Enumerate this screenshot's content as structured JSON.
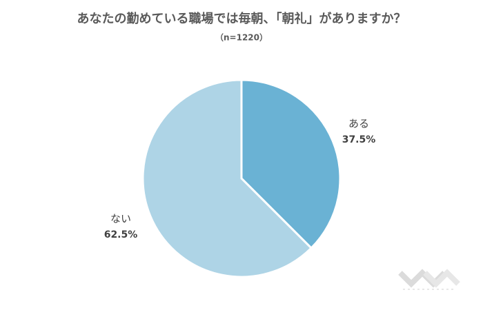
{
  "chart_data": {
    "type": "pie",
    "title": "あなたの勤めている職場では毎朝、「朝礼」がありますか？",
    "subtitle": "（n=1220）",
    "categories": [
      "ある",
      "ない"
    ],
    "values": [
      37.5,
      62.5
    ],
    "value_labels": [
      "37.5%",
      "62.5%"
    ],
    "colors": [
      "#6ab2d4",
      "#aed4e6"
    ]
  }
}
